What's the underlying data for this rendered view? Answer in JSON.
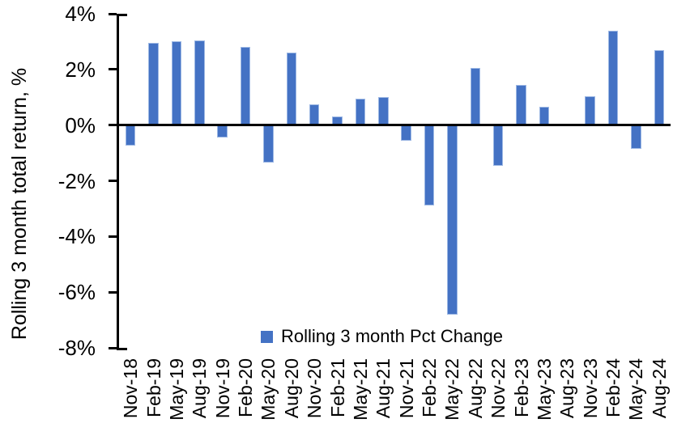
{
  "chart_data": {
    "type": "bar",
    "title": "",
    "xlabel": "",
    "ylabel": "Rolling 3 month total return, %",
    "categories": [
      "Nov-18",
      "Feb-19",
      "May-19",
      "Aug-19",
      "Nov-19",
      "Feb-20",
      "May-20",
      "Aug-20",
      "Nov-20",
      "Feb-21",
      "May-21",
      "Aug-21",
      "Nov-21",
      "Feb-22",
      "May-22",
      "Aug-22",
      "Nov-22",
      "Feb-23",
      "May-23",
      "Aug-23",
      "Nov-23",
      "Feb-24",
      "May-24",
      "Aug-24"
    ],
    "values": [
      -0.75,
      2.95,
      3.0,
      3.05,
      -0.45,
      2.8,
      -1.35,
      2.6,
      0.75,
      0.3,
      0.95,
      1.0,
      -0.55,
      -2.9,
      -6.8,
      2.05,
      -1.45,
      1.45,
      0.65,
      0.0,
      1.05,
      3.4,
      -0.85,
      2.7
    ],
    "ylim": [
      -8,
      4
    ],
    "ytick_step": 2,
    "ytick_labels": [
      "4%",
      "2%",
      "0%",
      "-2%",
      "-4%",
      "-6%",
      "-8%"
    ],
    "ytick_values": [
      4,
      2,
      0,
      -2,
      -4,
      -6,
      -8
    ],
    "grid": false,
    "legend": {
      "label": "Rolling 3 month Pct Change",
      "position": "bottom-center-inside"
    },
    "colors": {
      "bar_fill": "#4472C4",
      "bar_border": "#9DB8E4",
      "axis": "#000000",
      "text": "#000000"
    }
  }
}
